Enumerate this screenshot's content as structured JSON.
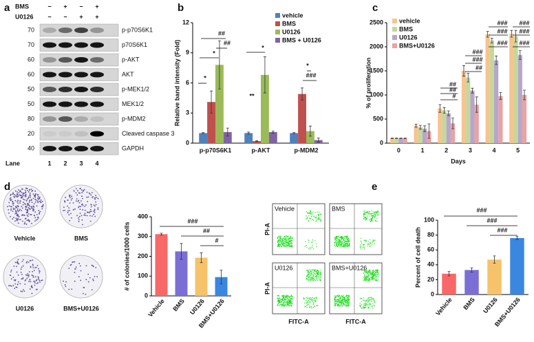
{
  "figure": {
    "panel_labels": [
      "a",
      "b",
      "c",
      "d",
      "e"
    ]
  },
  "blot": {
    "treatments": [
      {
        "name": "BMS",
        "signs": [
          "−",
          "+",
          "−",
          "+"
        ]
      },
      {
        "name": "U0126",
        "signs": [
          "−",
          "−",
          "+",
          "+"
        ]
      }
    ],
    "rows": [
      {
        "marker": "70",
        "protein": "p-p70S6K1"
      },
      {
        "marker": "70",
        "protein": "p70S6K1"
      },
      {
        "marker": "60",
        "protein": "p-AKT"
      },
      {
        "marker": "60",
        "protein": "AKT"
      },
      {
        "marker": "50",
        "protein": "p-MEK1/2"
      },
      {
        "marker": "50",
        "protein": "MEK1/2"
      },
      {
        "marker": "80",
        "protein": "p-MDM2"
      },
      {
        "marker": "20",
        "protein": "Cleaved caspase 3"
      },
      {
        "marker": "40",
        "protein": "GAPDH"
      }
    ],
    "lane_label": "Lane",
    "lanes": [
      "1",
      "2",
      "3",
      "4"
    ]
  },
  "colony_images": {
    "labels": [
      "Vehicle",
      "BMS",
      "U0126",
      "BMS+U0126"
    ]
  },
  "flow_plots": {
    "labels": [
      "Vehicle",
      "BMS",
      "U0126",
      "BMS+U0126"
    ],
    "y_axis": "PI-A",
    "x_axis": "FITC-A"
  },
  "chart_data": [
    {
      "type": "bar",
      "ylabel": "Relative band intensity (Fold)",
      "categories": [
        "p-p70S6K1",
        "p-AKT",
        "p-MDM2"
      ],
      "series": [
        {
          "name": "vehicle",
          "color": "#4f81bd",
          "values": [
            1,
            1,
            1
          ],
          "errors": [
            0.05,
            0.1,
            0.05
          ]
        },
        {
          "name": "BMS",
          "color": "#c0504d",
          "values": [
            4.1,
            0.2,
            4.9
          ],
          "errors": [
            1.1,
            0.05,
            0.6
          ]
        },
        {
          "name": "U0126",
          "color": "#9bbb59",
          "values": [
            7.8,
            6.8,
            1.2
          ],
          "errors": [
            2.4,
            1.8,
            0.5
          ]
        },
        {
          "name": "BMS + U0126",
          "color": "#8064a2",
          "values": [
            1.1,
            1.1,
            0.3
          ],
          "errors": [
            0.4,
            0.1,
            0.2
          ]
        }
      ],
      "ylim": [
        0,
        12
      ],
      "yticks": [
        0,
        3,
        6,
        9,
        12
      ],
      "legend": "upper right",
      "annotations": [
        "*",
        "*",
        "##",
        "##",
        "*",
        "**",
        "*",
        "###"
      ]
    },
    {
      "type": "bar",
      "ylabel": "% of proliferation",
      "xlabel": "Days",
      "categories": [
        "0",
        "1",
        "2",
        "3",
        "4",
        "5"
      ],
      "series": [
        {
          "name": "vehicle",
          "color": "#f7c38f",
          "values": [
            100,
            360,
            720,
            1500,
            2260,
            2270
          ],
          "errors": [
            5,
            30,
            80,
            110,
            60,
            70
          ]
        },
        {
          "name": "BMS",
          "color": "#c4d89d",
          "values": [
            100,
            330,
            680,
            1360,
            2130,
            2220
          ],
          "errors": [
            5,
            40,
            60,
            90,
            50,
            120
          ]
        },
        {
          "name": "U0126",
          "color": "#b6a6cc",
          "values": [
            100,
            300,
            620,
            1090,
            1720,
            1830
          ],
          "errors": [
            5,
            60,
            50,
            50,
            90,
            90
          ]
        },
        {
          "name": "BMS+U0126",
          "color": "#e8a3a3",
          "values": [
            100,
            250,
            410,
            800,
            980,
            1000
          ],
          "errors": [
            5,
            150,
            110,
            160,
            70,
            100
          ]
        }
      ],
      "ylim": [
        0,
        2500
      ],
      "yticks": [
        0,
        500,
        1000,
        1500,
        2000,
        2500
      ],
      "legend": "upper left",
      "annotations": [
        "##",
        "##",
        "#",
        "###",
        "###",
        "##",
        "###",
        "###",
        "###",
        "###",
        "###",
        "###"
      ]
    },
    {
      "type": "bar",
      "ylabel": "# of colonies/1000 cells",
      "categories": [
        "Vehicle",
        "BMS",
        "U0126",
        "BMS+U0126"
      ],
      "values": [
        312,
        225,
        193,
        95
      ],
      "errors": [
        5,
        40,
        25,
        35
      ],
      "colors": [
        "#f86868",
        "#7b6fd6",
        "#f6c36b",
        "#3a87e0"
      ],
      "ylim": [
        0,
        400
      ],
      "yticks": [
        0,
        100,
        200,
        300,
        400
      ],
      "annotations": [
        "###",
        "##",
        "#"
      ]
    },
    {
      "type": "bar",
      "ylabel": "Percent of cell death",
      "categories": [
        "Vehicle",
        "BMS",
        "U0126",
        "BMS+U0126"
      ],
      "values": [
        28,
        33,
        47,
        76
      ],
      "errors": [
        3,
        3,
        5,
        2
      ],
      "colors": [
        "#f86868",
        "#7b6fd6",
        "#f6c36b",
        "#3a87e0"
      ],
      "ylim": [
        0,
        100
      ],
      "yticks": [
        0,
        20,
        40,
        60,
        80,
        100
      ],
      "annotations": [
        "###",
        "###",
        "###"
      ]
    }
  ]
}
